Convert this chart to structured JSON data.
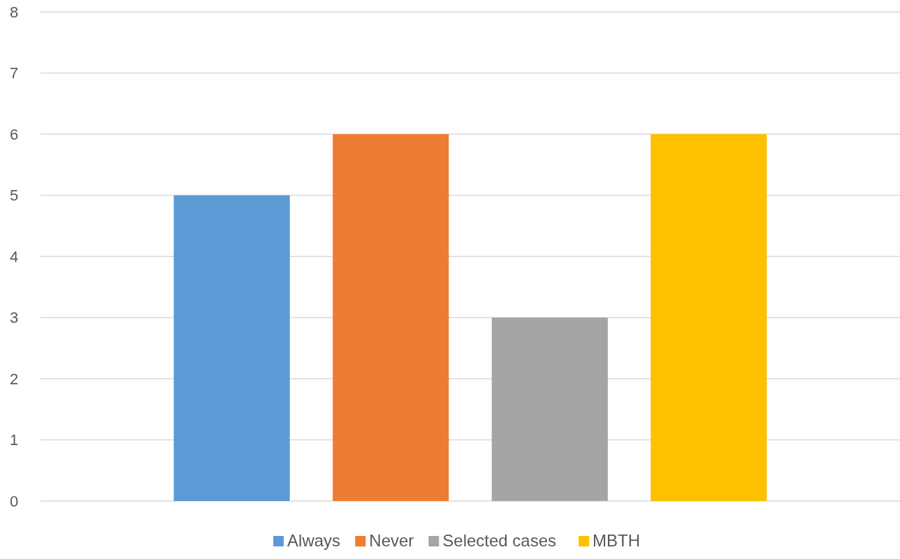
{
  "chart_data": {
    "type": "bar",
    "categories": [
      null
    ],
    "series": [
      {
        "name": "Always",
        "color": "#5b9bd5",
        "values": [
          5
        ]
      },
      {
        "name": "Never",
        "color": "#ed7d31",
        "values": [
          6
        ]
      },
      {
        "name": "Selected cases",
        "color": "#a5a5a5",
        "values": [
          3
        ]
      },
      {
        "name": "MBTH",
        "color": "#ffc000",
        "values": [
          6
        ]
      }
    ],
    "ylim": [
      0,
      8
    ],
    "yticks": [
      0,
      1,
      2,
      3,
      4,
      5,
      6,
      7,
      8
    ],
    "grid": "y",
    "legend": "bottom"
  }
}
